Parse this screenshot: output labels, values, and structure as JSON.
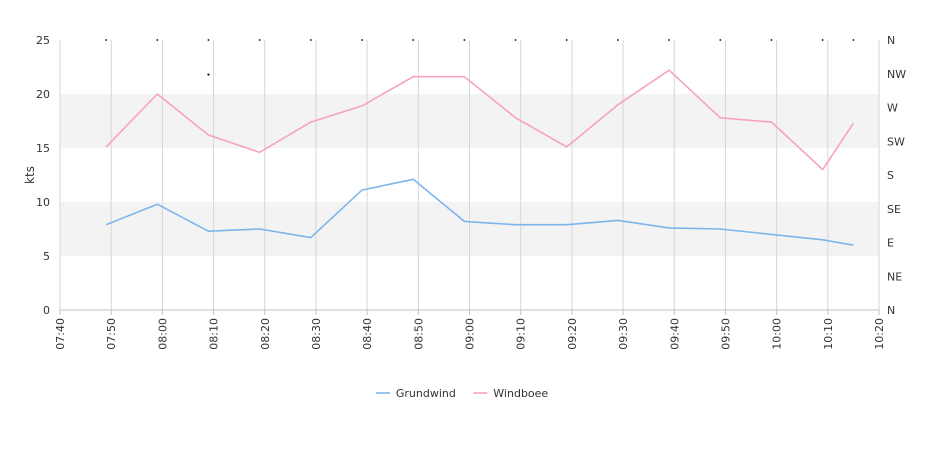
{
  "chart_data": {
    "type": "line",
    "title": "",
    "ylabel": "kts",
    "x_ticks": [
      "07:40",
      "07:50",
      "08:00",
      "08:10",
      "08:20",
      "08:30",
      "08:40",
      "08:50",
      "09:00",
      "09:10",
      "09:20",
      "09:30",
      "09:40",
      "09:50",
      "10:00",
      "10:10",
      "10:20"
    ],
    "x_range": [
      "07:40",
      "10:20"
    ],
    "ylim": [
      0,
      25
    ],
    "y_ticks": [
      "0",
      "5",
      "10",
      "15",
      "20",
      "25"
    ],
    "y2_ticks": [
      "N",
      "NE",
      "E",
      "SE",
      "S",
      "SW",
      "W",
      "NW",
      "N"
    ],
    "grid": true,
    "legend_position": "bottom",
    "series": [
      {
        "name": "Grundwind",
        "color": "#7cb5ec",
        "points": [
          [
            "07:49",
            7.9
          ],
          [
            "07:59",
            9.8
          ],
          [
            "08:09",
            7.3
          ],
          [
            "08:19",
            7.5
          ],
          [
            "08:29",
            6.7
          ],
          [
            "08:39",
            11.1
          ],
          [
            "08:49",
            12.1
          ],
          [
            "08:59",
            8.2
          ],
          [
            "09:09",
            7.9
          ],
          [
            "09:19",
            7.9
          ],
          [
            "09:29",
            8.3
          ],
          [
            "09:39",
            7.6
          ],
          [
            "09:49",
            7.5
          ],
          [
            "09:59",
            7.0
          ],
          [
            "10:09",
            6.5
          ],
          [
            "10:15",
            6.0
          ]
        ]
      },
      {
        "name": "Windboee",
        "color": "#f7a1c4",
        "points": [
          [
            "07:49",
            15.1
          ],
          [
            "07:59",
            20.0
          ],
          [
            "08:09",
            16.2
          ],
          [
            "08:19",
            14.6
          ],
          [
            "08:29",
            17.4
          ],
          [
            "08:39",
            18.9
          ],
          [
            "08:49",
            21.6
          ],
          [
            "08:59",
            21.6
          ],
          [
            "09:09",
            17.8
          ],
          [
            "09:19",
            15.1
          ],
          [
            "09:29",
            19.0
          ],
          [
            "09:39",
            22.2
          ],
          [
            "09:49",
            17.8
          ],
          [
            "09:59",
            17.4
          ],
          [
            "10:09",
            13.0
          ],
          [
            "10:15",
            17.3
          ]
        ]
      }
    ],
    "direction_markers": [
      "07:49",
      "07:59",
      "08:09",
      "08:19",
      "08:29",
      "08:39",
      "08:49",
      "08:59",
      "09:09",
      "09:19",
      "09:29",
      "09:39",
      "09:49",
      "09:59",
      "10:09",
      "10:15"
    ],
    "direction_marker_y": 25,
    "extra_marker": [
      "08:09",
      21.8
    ]
  }
}
